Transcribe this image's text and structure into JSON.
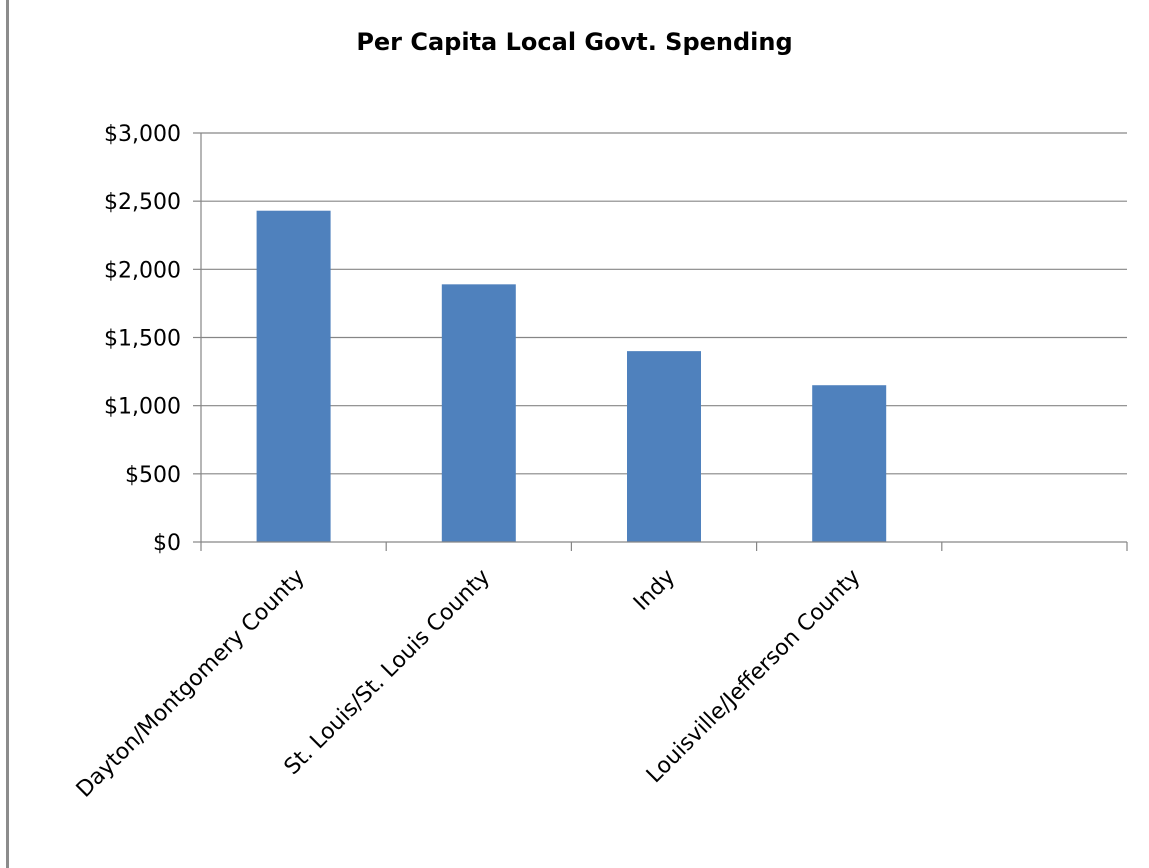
{
  "chart_data": {
    "type": "bar",
    "title": "Per Capita Local Govt. Spending",
    "xlabel": "",
    "ylabel": "",
    "categories": [
      "Dayton/Montgomery County",
      "St. Louis/St. Louis County",
      "Indy",
      "Louisville/Jefferson County",
      ""
    ],
    "values": [
      2430,
      1890,
      1400,
      1150,
      null
    ],
    "ylim": [
      0,
      3000
    ],
    "yticks": [
      0,
      500,
      1000,
      1500,
      2000,
      2500,
      3000
    ],
    "ytick_labels": [
      "$0",
      "$500",
      "$1,000",
      "$1,500",
      "$2,000",
      "$2,500",
      "$3,000"
    ],
    "grid": true,
    "legend": "none",
    "bar_color": "#4F81BD",
    "grid_color": "#868686"
  }
}
